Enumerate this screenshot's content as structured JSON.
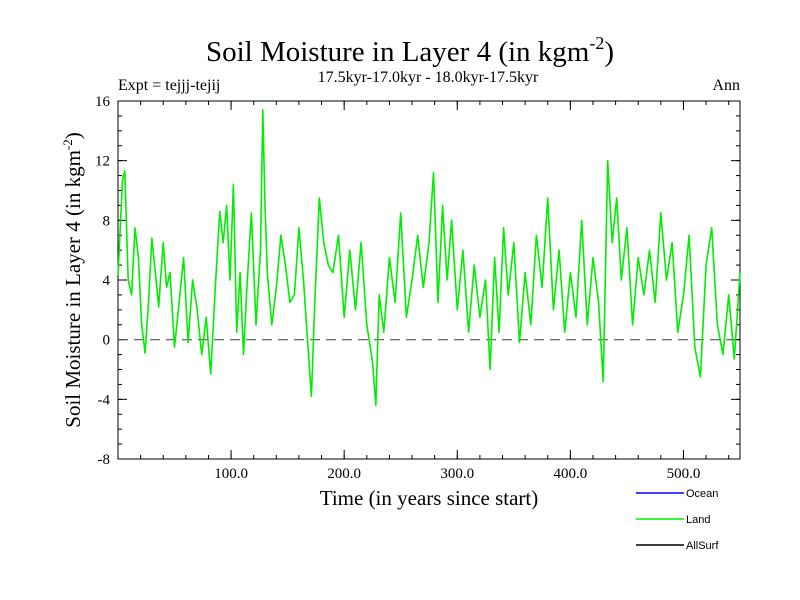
{
  "chart_data": {
    "type": "line",
    "title": "Soil Moisture in Layer 4 (in kgm",
    "title_sup": "-2",
    "title_close": ")",
    "subtitle": "17.5kyr-17.0kyr - 18.0kyr-17.5kyr",
    "expt_label": "Expt = tejjj-tejij",
    "season_label": "Ann",
    "xlabel": "Time (in years since start)",
    "ylabel": "Soil Moisture in Layer 4 (in kgm",
    "ylabel_sup": "-2",
    "ylabel_close": ")",
    "xlim": [
      0,
      550
    ],
    "ylim": [
      -8,
      16
    ],
    "x_ticks": [
      {
        "value": 100,
        "label": "100.0"
      },
      {
        "value": 200,
        "label": "200.0"
      },
      {
        "value": 300,
        "label": "300.0"
      },
      {
        "value": 400,
        "label": "400.0"
      },
      {
        "value": 500,
        "label": "500.0"
      }
    ],
    "y_ticks": [
      {
        "value": 16,
        "label": "16"
      },
      {
        "value": 12,
        "label": "12"
      },
      {
        "value": 8,
        "label": "8"
      },
      {
        "value": 4,
        "label": "4"
      },
      {
        "value": 0,
        "label": "0"
      },
      {
        "value": -4,
        "label": "-4"
      },
      {
        "value": -8,
        "label": "-8"
      }
    ],
    "zero_line": 0,
    "legend": [
      {
        "name": "Ocean",
        "color": "#0000ff"
      },
      {
        "name": "Land",
        "color": "#00ee00"
      },
      {
        "name": "AllSurf",
        "color": "#000000"
      }
    ],
    "series": [
      {
        "name": "Land",
        "color": "#00ee00",
        "x": [
          0,
          4,
          6,
          9,
          12,
          15,
          18,
          21,
          24,
          27,
          30,
          33,
          36,
          40,
          43,
          46,
          50,
          54,
          58,
          62,
          66,
          70,
          74,
          78,
          82,
          86,
          90,
          93,
          96,
          99,
          102,
          105,
          108,
          111,
          114,
          118,
          122,
          126,
          128,
          130,
          132,
          136,
          140,
          144,
          148,
          152,
          156,
          160,
          164,
          168,
          171,
          174,
          178,
          182,
          186,
          190,
          195,
          200,
          205,
          210,
          215,
          220,
          225,
          228,
          231,
          235,
          240,
          245,
          250,
          255,
          260,
          265,
          270,
          275,
          279,
          283,
          287,
          291,
          295,
          300,
          305,
          310,
          315,
          320,
          325,
          329,
          333,
          337,
          341,
          345,
          350,
          355,
          360,
          365,
          370,
          375,
          380,
          385,
          390,
          395,
          400,
          405,
          410,
          415,
          420,
          425,
          429,
          433,
          437,
          441,
          445,
          450,
          455,
          460,
          465,
          470,
          475,
          480,
          485,
          490,
          495,
          500,
          505,
          510,
          515,
          520,
          525,
          530,
          535,
          540,
          545,
          550
        ],
        "values": [
          4.3,
          10.7,
          11.3,
          4.0,
          3.0,
          7.5,
          5.5,
          1.0,
          -0.9,
          2.5,
          6.8,
          4.5,
          2.2,
          6.5,
          3.5,
          4.5,
          -0.5,
          2.5,
          5.5,
          -0.2,
          4.0,
          2.0,
          -1.0,
          1.5,
          -2.3,
          3.5,
          8.6,
          6.5,
          9.0,
          4.0,
          10.4,
          0.5,
          4.5,
          -1.0,
          3.5,
          8.5,
          1.0,
          6.0,
          15.4,
          9.0,
          4.5,
          1.0,
          3.5,
          7.0,
          5.0,
          2.5,
          3.0,
          7.5,
          4.0,
          -0.5,
          -3.8,
          2.5,
          9.5,
          6.5,
          5.0,
          4.5,
          7.0,
          1.5,
          6.0,
          2.0,
          6.5,
          1.0,
          -1.5,
          -4.4,
          3.0,
          0.5,
          5.5,
          2.5,
          8.5,
          1.5,
          4.0,
          7.0,
          3.5,
          6.5,
          11.2,
          2.5,
          9.0,
          4.0,
          8.0,
          2.0,
          6.0,
          0.5,
          5.0,
          1.5,
          4.0,
          -2.0,
          5.5,
          0.5,
          7.5,
          3.0,
          6.5,
          -0.2,
          4.5,
          1.0,
          7.0,
          3.5,
          9.5,
          2.0,
          6.0,
          0.5,
          4.5,
          1.5,
          8.0,
          1.0,
          5.5,
          2.5,
          -2.8,
          12.0,
          6.5,
          9.5,
          4.0,
          7.5,
          1.0,
          5.5,
          3.0,
          6.0,
          2.5,
          8.5,
          4.0,
          6.5,
          0.5,
          3.0,
          7.0,
          -0.5,
          -2.5,
          5.0,
          7.5,
          1.0,
          -1.0,
          3.0,
          -1.3,
          4.5
        ]
      }
    ]
  }
}
